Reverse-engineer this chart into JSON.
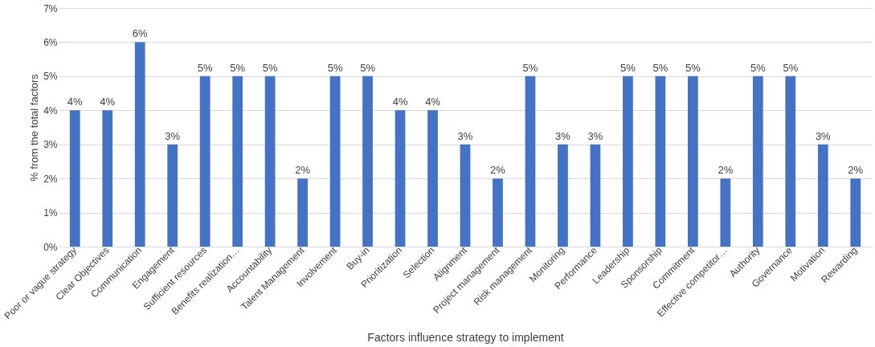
{
  "chart_data": {
    "type": "bar",
    "xlabel": "Factors influence strategy to implement",
    "ylabel": "% from the total factors",
    "categories": [
      "Poor or vague strategy",
      "Clear Objectives",
      "Communication",
      "Engagement",
      "Sufficient resources",
      "Benefits realization…",
      "Accountability",
      "Talent Management",
      "Involvement",
      "Buy-in",
      "Prioritization",
      "Selection",
      "Alignment",
      "Project management",
      "Risk management",
      "Monitoring",
      "Performance",
      "Leadership",
      "Sponsorship",
      "Commitment",
      "Effective competitor…",
      "Authority",
      "Governance",
      "Motivation",
      "Rewarding"
    ],
    "values": [
      4,
      4,
      6,
      3,
      5,
      5,
      5,
      2,
      5,
      5,
      4,
      4,
      3,
      2,
      5,
      3,
      3,
      5,
      5,
      5,
      2,
      5,
      5,
      3,
      2
    ],
    "value_labels": [
      "4%",
      "4%",
      "6%",
      "3%",
      "5%",
      "5%",
      "5%",
      "2%",
      "5%",
      "5%",
      "4%",
      "4%",
      "3%",
      "2%",
      "5%",
      "3%",
      "3%",
      "5%",
      "5%",
      "5%",
      "2%",
      "5%",
      "5%",
      "3%",
      "2%"
    ],
    "color": "#4472c4",
    "ylim": [
      0,
      7
    ],
    "yticks": [
      {
        "value": 0,
        "label": "0%"
      },
      {
        "value": 1,
        "label": "1%"
      },
      {
        "value": 2,
        "label": "2%"
      },
      {
        "value": 3,
        "label": "3%"
      },
      {
        "value": 4,
        "label": "4%"
      },
      {
        "value": 5,
        "label": "5%"
      },
      {
        "value": 6,
        "label": "6%"
      },
      {
        "value": 7,
        "label": "7%"
      }
    ],
    "grid": "y"
  }
}
